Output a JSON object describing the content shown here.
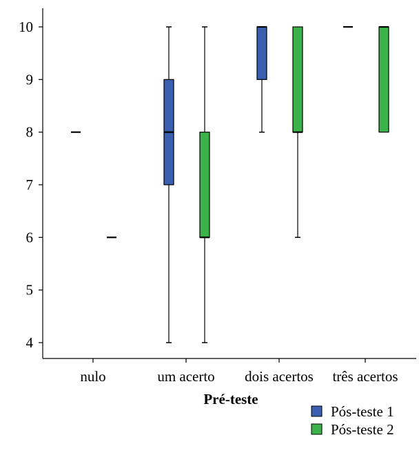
{
  "chart_data": {
    "type": "boxplot",
    "xlabel": "Pré-teste",
    "ylabel": "",
    "ylim": [
      4,
      10
    ],
    "yticks": [
      4,
      5,
      6,
      7,
      8,
      9,
      10
    ],
    "grid": false,
    "legend_position": "bottom-right",
    "categories": [
      "nulo",
      "um acerto",
      "dois acertos",
      "três acertos"
    ],
    "series": [
      {
        "name": "Pós-teste 1",
        "color": "#3a5fae",
        "boxes": [
          {
            "category": "nulo",
            "min": 8,
            "q1": 8,
            "median": 8,
            "q3": 8,
            "max": 8
          },
          {
            "category": "um acerto",
            "min": 4,
            "q1": 7,
            "median": 8,
            "q3": 9,
            "max": 10
          },
          {
            "category": "dois acertos",
            "min": 8,
            "q1": 9,
            "median": 10,
            "q3": 10,
            "max": 10
          },
          {
            "category": "três acertos",
            "min": 10,
            "q1": 10,
            "median": 10,
            "q3": 10,
            "max": 10
          }
        ]
      },
      {
        "name": "Pós-teste 2",
        "color": "#3cb34a",
        "boxes": [
          {
            "category": "nulo",
            "min": 6,
            "q1": 6,
            "median": 6,
            "q3": 6,
            "max": 6
          },
          {
            "category": "um acerto",
            "min": 4,
            "q1": 6,
            "median": 6,
            "q3": 8,
            "max": 10
          },
          {
            "category": "dois acertos",
            "min": 6,
            "q1": 8,
            "median": 8,
            "q3": 10,
            "max": 10
          },
          {
            "category": "três acertos",
            "min": 8,
            "q1": 8,
            "median": 10,
            "q3": 10,
            "max": 10
          }
        ]
      }
    ]
  }
}
